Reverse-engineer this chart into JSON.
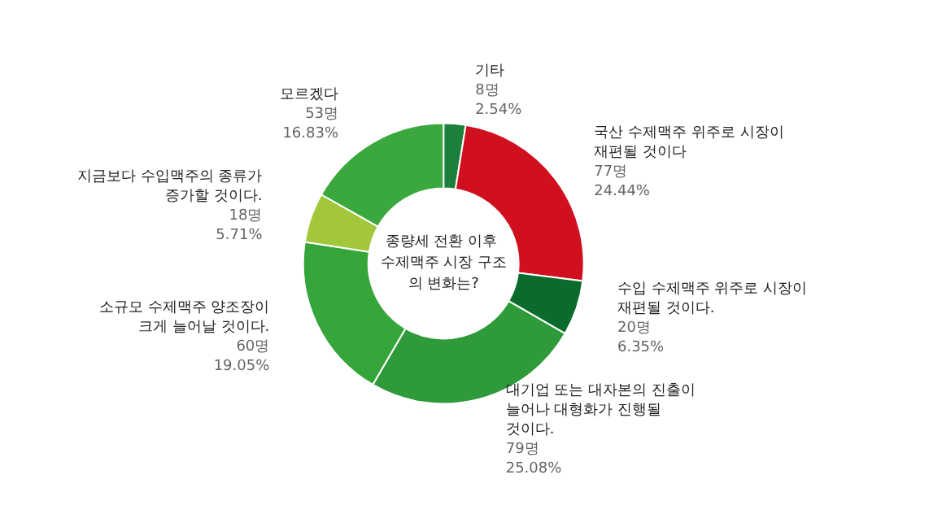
{
  "chart_data": {
    "type": "donut",
    "title": "종량세 전환 이후 수제맥주 시장 구조의 변화는?",
    "categories": [
      "기타",
      "국산 수제맥주 위주로 시장이 재편될 것이다",
      "수입 수제맥주 위주로 시장이 재편될 것이다.",
      "대기업 또는 대자본의 진출이 늘어나 대형화가 진행될 것이다.",
      "소규모 수제맥주 양조장이 크게 늘어날 것이다.",
      "지금보다 수입맥주의 종류가 증가할 것이다.",
      "모르겠다"
    ],
    "values": [
      8,
      77,
      20,
      79,
      60,
      18,
      53
    ],
    "value_labels": [
      "8명\n2.54%",
      "77명\n24.44%",
      "20명\n6.35%",
      "79명\n25.08%",
      "60명\n19.05%",
      "18명\n5.71%",
      "53명\n16.83%"
    ],
    "colors": [
      "#1d7f3c",
      "#d0101e",
      "#0b6b2c",
      "#2f9a3a",
      "#36a53a",
      "#a2c73b",
      "#3aa83c"
    ],
    "legend": false
  }
}
